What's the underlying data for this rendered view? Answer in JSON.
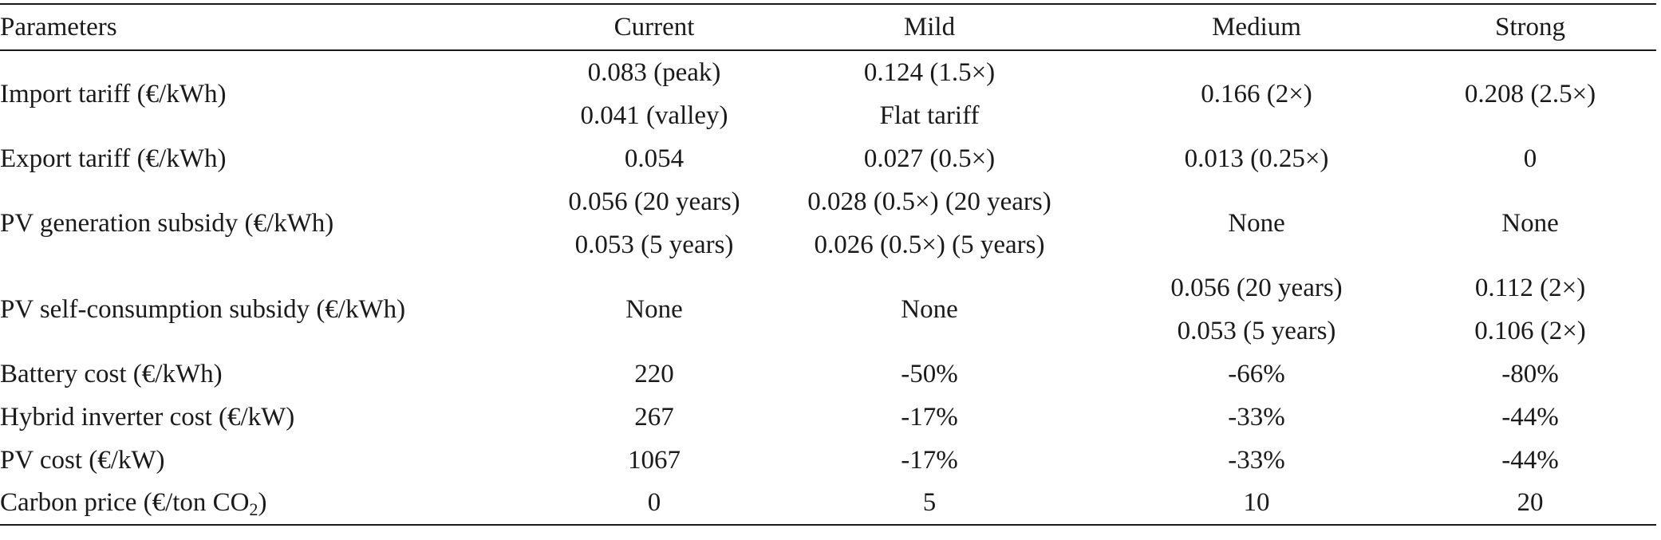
{
  "table": {
    "headers": {
      "parameters": "Parameters",
      "current": "Current",
      "mild": "Mild",
      "medium": "Medium",
      "strong": "Strong"
    },
    "rows": {
      "import_tariff": {
        "label": "Import tariff (€/kWh)",
        "current": [
          "0.083 (peak)",
          "0.041 (valley)"
        ],
        "mild": [
          "0.124 (1.5×)",
          "Flat tariff"
        ],
        "medium": "0.166 (2×)",
        "strong": "0.208 (2.5×)"
      },
      "export_tariff": {
        "label": "Export tariff (€/kWh)",
        "current": "0.054",
        "mild": "0.027 (0.5×)",
        "medium": "0.013 (0.25×)",
        "strong": "0"
      },
      "pv_generation_subsidy": {
        "label": "PV generation subsidy (€/kWh)",
        "current": [
          "0.056 (20 years)",
          "0.053 (5 years)"
        ],
        "mild": [
          "0.028 (0.5×) (20 years)",
          "0.026 (0.5×) (5 years)"
        ],
        "medium": "None",
        "strong": "None"
      },
      "pv_self_consumption_subsidy": {
        "label": "PV self-consumption subsidy (€/kWh)",
        "current": "None",
        "mild": "None",
        "medium": [
          "0.056 (20 years)",
          "0.053 (5 years)"
        ],
        "strong": [
          "0.112 (2×)",
          "0.106 (2×)"
        ]
      },
      "battery_cost": {
        "label": "Battery cost (€/kWh)",
        "current": "220",
        "mild": "-50%",
        "medium": "-66%",
        "strong": "-80%"
      },
      "hybrid_inverter_cost": {
        "label": "Hybrid inverter cost (€/kW)",
        "current": "267",
        "mild": "-17%",
        "medium": "-33%",
        "strong": "-44%"
      },
      "pv_cost": {
        "label": "PV cost (€/kW)",
        "current": "1067",
        "mild": "-17%",
        "medium": "-33%",
        "strong": "-44%"
      },
      "carbon_price": {
        "label_main": "Carbon price (€/ton CO",
        "label_sub": "2",
        "label_end": ")",
        "current": "0",
        "mild": "5",
        "medium": "10",
        "strong": "20"
      }
    }
  }
}
